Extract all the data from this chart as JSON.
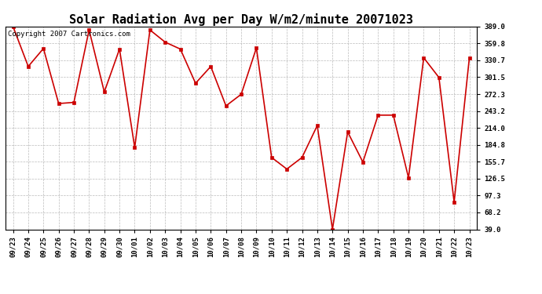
{
  "title": "Solar Radiation Avg per Day W/m2/minute 20071023",
  "copyright": "Copyright 2007 Cartronics.com",
  "labels": [
    "09/23",
    "09/24",
    "09/25",
    "09/26",
    "09/27",
    "09/28",
    "09/29",
    "09/30",
    "10/01",
    "10/02",
    "10/03",
    "10/04",
    "10/05",
    "10/06",
    "10/07",
    "10/08",
    "10/09",
    "10/10",
    "10/11",
    "10/12",
    "10/13",
    "10/14",
    "10/15",
    "10/16",
    "10/17",
    "10/18",
    "10/19",
    "10/20",
    "10/21",
    "10/22",
    "10/23"
  ],
  "values": [
    389.0,
    320.0,
    351.0,
    256.0,
    258.0,
    383.0,
    276.0,
    350.0,
    180.0,
    383.0,
    362.0,
    350.0,
    291.0,
    320.0,
    252.0,
    272.0,
    352.0,
    163.0,
    143.0,
    163.0,
    218.0,
    39.0,
    207.0,
    155.0,
    236.0,
    236.0,
    128.0,
    335.0,
    301.0,
    86.0,
    335.0
  ],
  "ylim": [
    39.0,
    389.0
  ],
  "yticks": [
    39.0,
    68.2,
    97.3,
    126.5,
    155.7,
    184.8,
    214.0,
    243.2,
    272.3,
    301.5,
    330.7,
    359.8,
    389.0
  ],
  "ytick_labels": [
    "39.0",
    "68.2",
    "97.3",
    "126.5",
    "155.7",
    "184.8",
    "214.0",
    "243.2",
    "272.3",
    "301.5",
    "330.7",
    "359.8",
    "389.0"
  ],
  "line_color": "#cc0000",
  "marker_color": "#cc0000",
  "bg_color": "#ffffff",
  "grid_color": "#aaaaaa",
  "title_fontsize": 11,
  "tick_fontsize": 6.5,
  "copyright_fontsize": 6.5
}
